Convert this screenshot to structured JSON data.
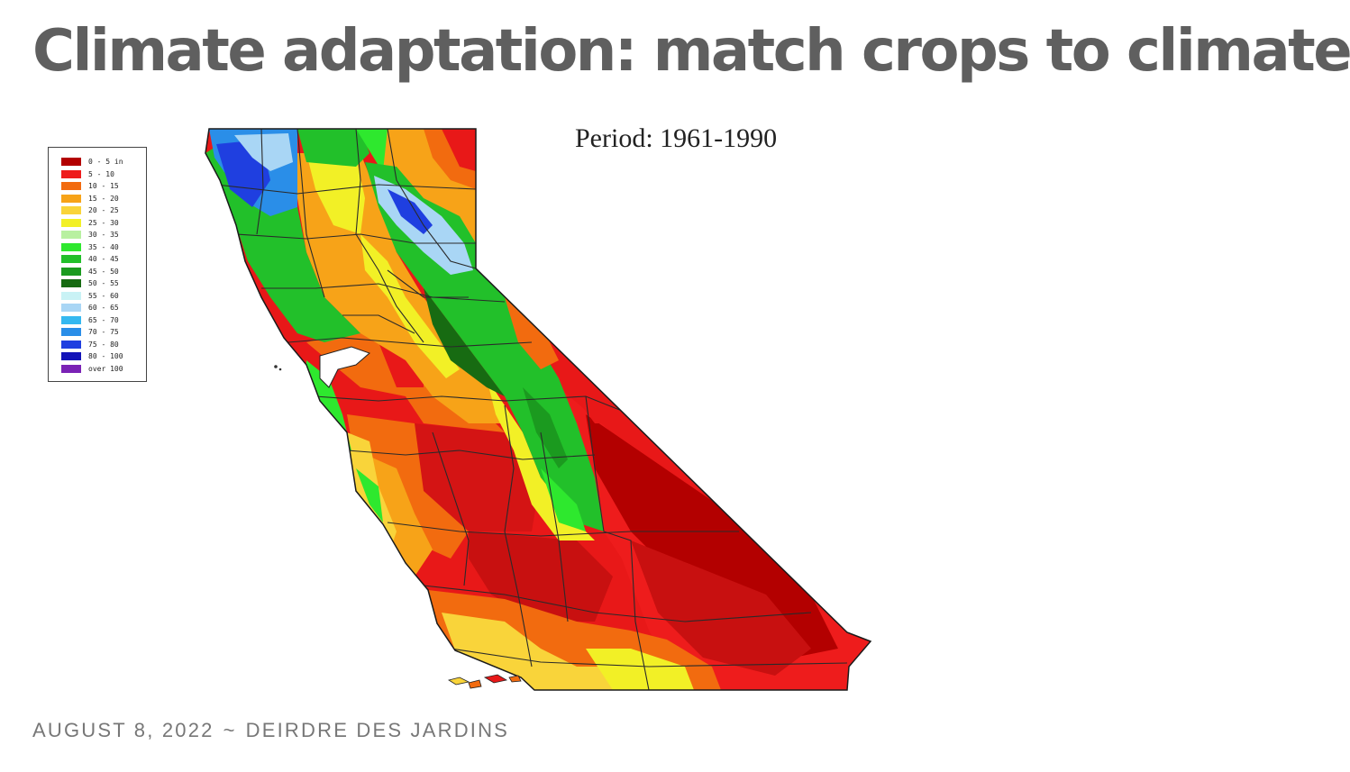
{
  "post": {
    "title": "Climate adaptation: match crops to climate",
    "date": "AUGUST 8, 2022",
    "separator": "~",
    "author": "DEIRDRE DES JARDINS"
  },
  "map": {
    "period_label": "Period: 1961-1990",
    "legend": [
      {
        "label": "0 - 5 in",
        "color": "#b30000"
      },
      {
        "label": "5 - 10",
        "color": "#ee1c1c"
      },
      {
        "label": "10 - 15",
        "color": "#f26b0f"
      },
      {
        "label": "15 - 20",
        "color": "#f7a318"
      },
      {
        "label": "20 - 25",
        "color": "#f9d43a"
      },
      {
        "label": "25 - 30",
        "color": "#f2f026"
      },
      {
        "label": "30 - 35",
        "color": "#b8f0a0"
      },
      {
        "label": "35 - 40",
        "color": "#2ee82e"
      },
      {
        "label": "40 - 45",
        "color": "#22c02a"
      },
      {
        "label": "45 - 50",
        "color": "#1b9a1f"
      },
      {
        "label": "50 - 55",
        "color": "#176b12"
      },
      {
        "label": "55 - 60",
        "color": "#c9f2f5"
      },
      {
        "label": "60 - 65",
        "color": "#a9d6f5"
      },
      {
        "label": "65 - 70",
        "color": "#35b8f0"
      },
      {
        "label": "70 - 75",
        "color": "#2a8ee8"
      },
      {
        "label": "75 - 80",
        "color": "#1f3fe0"
      },
      {
        "label": "80 - 100",
        "color": "#1414b8"
      },
      {
        "label": "over 100",
        "color": "#7a22b5"
      }
    ]
  }
}
